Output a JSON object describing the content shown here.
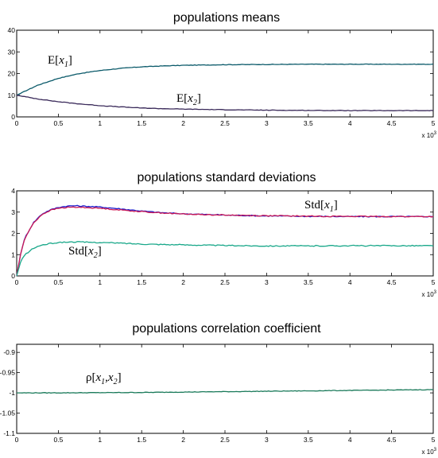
{
  "chart_data": [
    {
      "type": "line",
      "title": "populations means",
      "xlim": [
        0,
        5
      ],
      "ylim": [
        0,
        40
      ],
      "x_ticks": [
        "0",
        "0.5",
        "1",
        "1.5",
        "2",
        "2.5",
        "3",
        "3.5",
        "4",
        "4.5",
        "5"
      ],
      "y_ticks": [
        "0",
        "10",
        "20",
        "30",
        "40"
      ],
      "x_multiplier": {
        "base": "x 10",
        "exp": "3"
      },
      "series": [
        {
          "color": "#0b5a6a",
          "x": [
            0,
            0.25,
            0.5,
            0.75,
            1,
            1.25,
            1.5,
            1.75,
            2,
            2.5,
            3,
            3.5,
            4,
            4.5,
            5
          ],
          "y": [
            10,
            14.6,
            17.8,
            20,
            21.4,
            22.4,
            23.1,
            23.5,
            23.8,
            24.1,
            24.2,
            24.3,
            24.3,
            24.3,
            24.3
          ]
        },
        {
          "color": "#3a2a5a",
          "x": [
            0,
            0.25,
            0.5,
            0.75,
            1,
            1.25,
            1.5,
            1.75,
            2,
            2.5,
            3,
            3.5,
            4,
            4.5,
            5
          ],
          "y": [
            10,
            8.3,
            7.0,
            6.0,
            5.2,
            4.6,
            4.1,
            3.8,
            3.6,
            3.3,
            3.1,
            3.0,
            2.9,
            2.9,
            2.9
          ]
        }
      ],
      "annotations": [
        {
          "base": "E[",
          "var": "x",
          "sub": "1",
          "tail": "]"
        },
        {
          "base": "E[",
          "var": "x",
          "sub": "2",
          "tail": "]"
        }
      ]
    },
    {
      "type": "line",
      "title": "populations standard deviations",
      "xlim": [
        0,
        5
      ],
      "ylim": [
        0,
        4
      ],
      "x_ticks": [
        "0",
        "0.5",
        "1",
        "1.5",
        "2",
        "2.5",
        "3",
        "3.5",
        "4",
        "4.5",
        "5"
      ],
      "y_ticks": [
        "0",
        "1",
        "2",
        "3",
        "4"
      ],
      "x_multiplier": {
        "base": "x 10",
        "exp": "3"
      },
      "series": [
        {
          "color": "#1a1acc",
          "x": [
            0,
            0.05,
            0.1,
            0.2,
            0.3,
            0.4,
            0.5,
            0.6,
            0.7,
            0.8,
            1,
            1.25,
            1.5,
            1.75,
            2,
            2.5,
            3,
            3.5,
            4,
            4.5,
            5
          ],
          "y": [
            0,
            1.1,
            1.8,
            2.5,
            2.9,
            3.1,
            3.22,
            3.28,
            3.3,
            3.28,
            3.24,
            3.15,
            3.05,
            2.97,
            2.92,
            2.86,
            2.82,
            2.8,
            2.79,
            2.79,
            2.79
          ]
        },
        {
          "color": "#cc1a55",
          "x": [
            0,
            0.05,
            0.1,
            0.2,
            0.3,
            0.4,
            0.5,
            0.6,
            0.7,
            0.8,
            1,
            1.25,
            1.5,
            1.75,
            2,
            2.5,
            3,
            3.5,
            4,
            4.5,
            5
          ],
          "y": [
            0,
            1.1,
            1.78,
            2.48,
            2.88,
            3.08,
            3.18,
            3.22,
            3.23,
            3.22,
            3.18,
            3.1,
            3.02,
            2.96,
            2.91,
            2.86,
            2.83,
            2.81,
            2.8,
            2.79,
            2.79
          ]
        },
        {
          "color": "#1aa88a",
          "x": [
            0,
            0.05,
            0.1,
            0.2,
            0.3,
            0.4,
            0.5,
            0.6,
            0.7,
            0.8,
            1,
            1.25,
            1.5,
            2,
            2.5,
            3,
            3.5,
            4,
            4.5,
            5
          ],
          "y": [
            0,
            0.7,
            1.0,
            1.3,
            1.45,
            1.52,
            1.57,
            1.59,
            1.6,
            1.59,
            1.57,
            1.54,
            1.5,
            1.46,
            1.43,
            1.41,
            1.41,
            1.42,
            1.42,
            1.42
          ]
        }
      ],
      "annotations": [
        {
          "base": "Std[",
          "var": "x",
          "sub": "1",
          "tail": "]"
        },
        {
          "base": "Std[",
          "var": "x",
          "sub": "2",
          "tail": "]"
        }
      ]
    },
    {
      "type": "line",
      "title": "populations correlation coefficient",
      "xlim": [
        0,
        5
      ],
      "ylim": [
        -1.1,
        -0.88
      ],
      "x_ticks": [
        "0",
        "0.5",
        "1",
        "1.5",
        "2",
        "2.5",
        "3",
        "3.5",
        "4",
        "4.5",
        "5"
      ],
      "y_ticks": [
        "-0.9",
        "-0.95",
        "-1",
        "-1.05",
        "-1.1"
      ],
      "x_multiplier": {
        "base": "x 10",
        "exp": "3"
      },
      "series": [
        {
          "color": "#1a7a5a",
          "x": [
            0,
            0.5,
            1,
            1.5,
            2,
            2.5,
            3,
            3.5,
            4,
            4.5,
            5
          ],
          "y": [
            -1.0,
            -0.9999,
            -0.9995,
            -0.999,
            -0.998,
            -0.997,
            -0.996,
            -0.995,
            -0.994,
            -0.993,
            -0.992
          ]
        }
      ],
      "annotations": [
        {
          "base": "ρ[",
          "var": "x",
          "sub": "1",
          "mid": ",",
          "var2": "x",
          "sub2": "2",
          "tail": "]"
        }
      ]
    }
  ]
}
